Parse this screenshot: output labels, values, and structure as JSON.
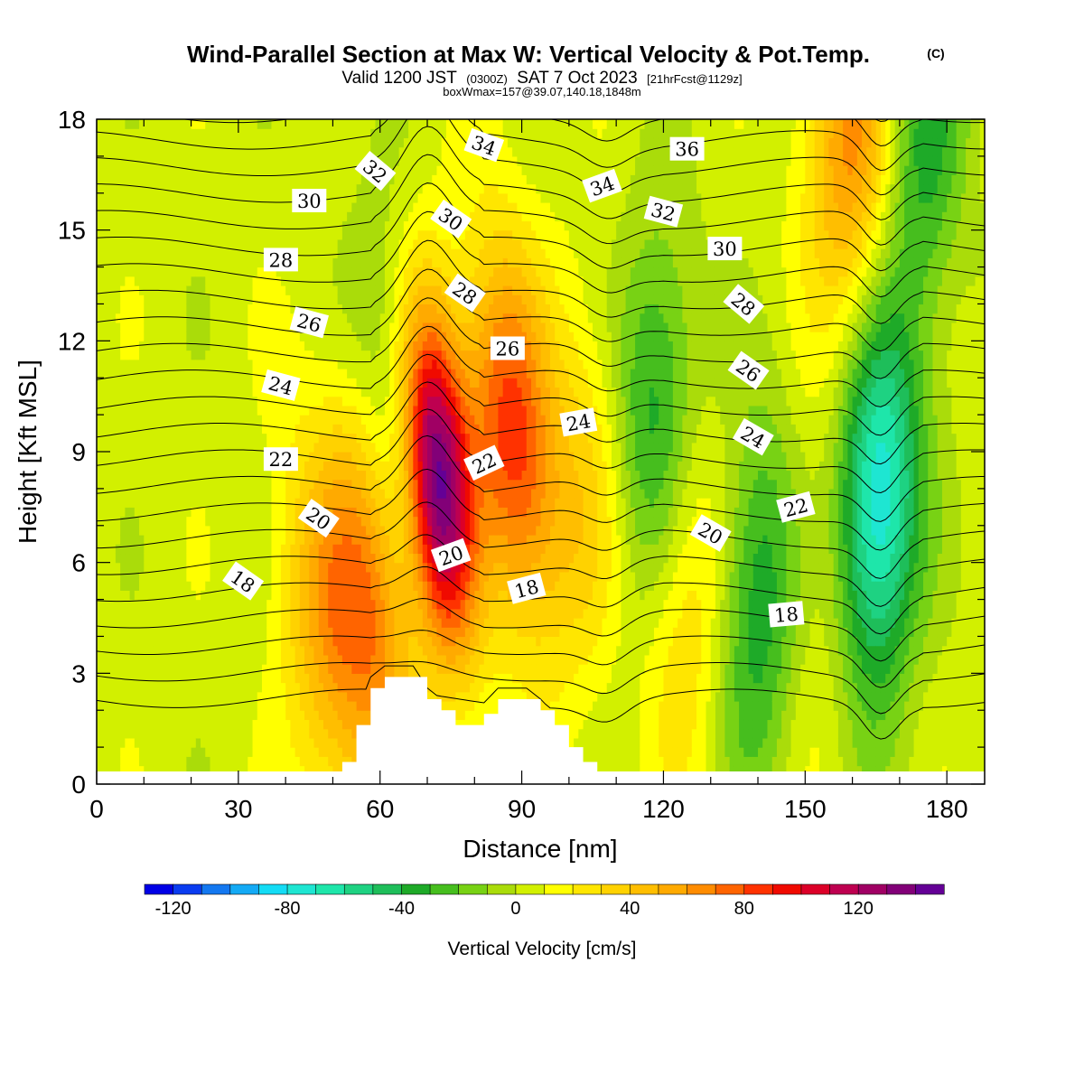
{
  "title": {
    "main": "Wind-Parallel Section at Max W: Vertical Velocity & Pot.Temp.",
    "copyright": "(C)",
    "line2_a": "Valid 1200 JST",
    "line2_b": "(0300Z)",
    "line2_c": "SAT 7 Oct 2023",
    "line2_d": "[21hrFcst@1129z]",
    "line3": "boxWmax=157@39.07,140.18,1848m"
  },
  "colors": {
    "terrain": "#ffffff",
    "contour": "#000000",
    "palette": [
      "#0000e6",
      "#0a3cf0",
      "#1478f0",
      "#14aaf5",
      "#14dcf5",
      "#1ee6d2",
      "#1ee6aa",
      "#1ed282",
      "#1ebe5a",
      "#1eaa28",
      "#46be1e",
      "#78d214",
      "#aadc0a",
      "#d2f000",
      "#ffff00",
      "#ffe600",
      "#ffd200",
      "#ffbe00",
      "#ffaa00",
      "#ff8c00",
      "#ff6400",
      "#ff3200",
      "#f00a00",
      "#dc0028",
      "#be0050",
      "#a00064",
      "#820078",
      "#640096"
    ]
  },
  "chart_data": {
    "type": "heatmap",
    "title": "Wind-Parallel Section at Max W: Vertical Velocity & Pot.Temp.",
    "xlabel": "Distance [nm]",
    "ylabel": "Height [Kft MSL]",
    "xlim": [
      0,
      188
    ],
    "ylim": [
      0,
      18
    ],
    "x_ticks": [
      0,
      30,
      60,
      90,
      120,
      150,
      180
    ],
    "y_ticks": [
      0,
      3,
      6,
      9,
      12,
      15,
      18
    ],
    "colorbar": {
      "label": "Vertical Velocity [cm/s]",
      "min": -130,
      "max": 150,
      "step": 10,
      "tick_values": [
        -120,
        -80,
        -40,
        0,
        40,
        80,
        120
      ],
      "tick_labels": [
        "-120",
        "-80",
        "-40",
        "0",
        "40",
        "80",
        "120"
      ]
    },
    "vertical_velocity_features": [
      {
        "x": 72,
        "z": 8.5,
        "peak": 150
      },
      {
        "x": 88,
        "z": 9.5,
        "peak": 80
      },
      {
        "x": 58,
        "z": 5.0,
        "peak": 60
      },
      {
        "x": 48,
        "z": 4.0,
        "peak": 40
      },
      {
        "x": 104,
        "z": 8.0,
        "peak": 28
      },
      {
        "x": 125,
        "z": 5.0,
        "peak": 30
      },
      {
        "x": 155,
        "z": 6.0,
        "peak": 20
      },
      {
        "x": 65,
        "z": 10.5,
        "peak": -35
      },
      {
        "x": 118,
        "z": 10.0,
        "peak": -45
      },
      {
        "x": 140,
        "z": 5.0,
        "peak": -45
      },
      {
        "x": 165,
        "z": 7.5,
        "peak": -90
      },
      {
        "x": 175,
        "z": 17.5,
        "peak": -40
      },
      {
        "x": 160,
        "z": 17.5,
        "peak": 60
      }
    ],
    "terrain": {
      "x": [
        52,
        55,
        58,
        61,
        64,
        67,
        70,
        73,
        76,
        79,
        82,
        85,
        88,
        91,
        94,
        97,
        100,
        103,
        106,
        109,
        110
      ],
      "height": [
        0.6,
        1.6,
        2.6,
        2.9,
        2.9,
        2.9,
        2.3,
        2.0,
        1.6,
        1.6,
        1.9,
        2.3,
        2.3,
        2.3,
        2.0,
        1.6,
        1.0,
        0.6,
        0.3,
        0.0,
        0.0
      ]
    },
    "potential_temperature": {
      "levels": [
        14,
        15,
        16,
        17,
        18,
        19,
        20,
        21,
        22,
        23,
        24,
        25,
        26,
        27,
        28,
        29,
        30,
        31,
        32,
        33,
        34,
        35,
        36,
        37,
        38
      ],
      "labels": [
        {
          "text": "18",
          "x": 31,
          "z": 5.5,
          "angle": 35
        },
        {
          "text": "20",
          "x": 47,
          "z": 7.2,
          "angle": 35
        },
        {
          "text": "22",
          "x": 39,
          "z": 8.8,
          "angle": 0
        },
        {
          "text": "24",
          "x": 39,
          "z": 10.8,
          "angle": 15
        },
        {
          "text": "26",
          "x": 45,
          "z": 12.5,
          "angle": 15
        },
        {
          "text": "28",
          "x": 39,
          "z": 14.2,
          "angle": 0
        },
        {
          "text": "30",
          "x": 45,
          "z": 15.8,
          "angle": 0
        },
        {
          "text": "32",
          "x": 59,
          "z": 16.6,
          "angle": 40
        },
        {
          "text": "34",
          "x": 82,
          "z": 17.3,
          "angle": 20
        },
        {
          "text": "30",
          "x": 75,
          "z": 15.3,
          "angle": 35
        },
        {
          "text": "28",
          "x": 78,
          "z": 13.3,
          "angle": 35
        },
        {
          "text": "26",
          "x": 87,
          "z": 11.8,
          "angle": 0
        },
        {
          "text": "24",
          "x": 102,
          "z": 9.8,
          "angle": -10
        },
        {
          "text": "22",
          "x": 82,
          "z": 8.7,
          "angle": -25
        },
        {
          "text": "20",
          "x": 75,
          "z": 6.2,
          "angle": -20
        },
        {
          "text": "18",
          "x": 91,
          "z": 5.3,
          "angle": -15
        },
        {
          "text": "34",
          "x": 107,
          "z": 16.2,
          "angle": -20
        },
        {
          "text": "36",
          "x": 125,
          "z": 17.2,
          "angle": 0
        },
        {
          "text": "32",
          "x": 120,
          "z": 15.5,
          "angle": 15
        },
        {
          "text": "30",
          "x": 133,
          "z": 14.5,
          "angle": 0
        },
        {
          "text": "28",
          "x": 137,
          "z": 13.0,
          "angle": 40
        },
        {
          "text": "26",
          "x": 138,
          "z": 11.2,
          "angle": 35
        },
        {
          "text": "24",
          "x": 139,
          "z": 9.4,
          "angle": 30
        },
        {
          "text": "22",
          "x": 148,
          "z": 7.5,
          "angle": -15
        },
        {
          "text": "20",
          "x": 130,
          "z": 6.8,
          "angle": 30
        },
        {
          "text": "18",
          "x": 146,
          "z": 4.6,
          "angle": -5
        }
      ]
    }
  }
}
